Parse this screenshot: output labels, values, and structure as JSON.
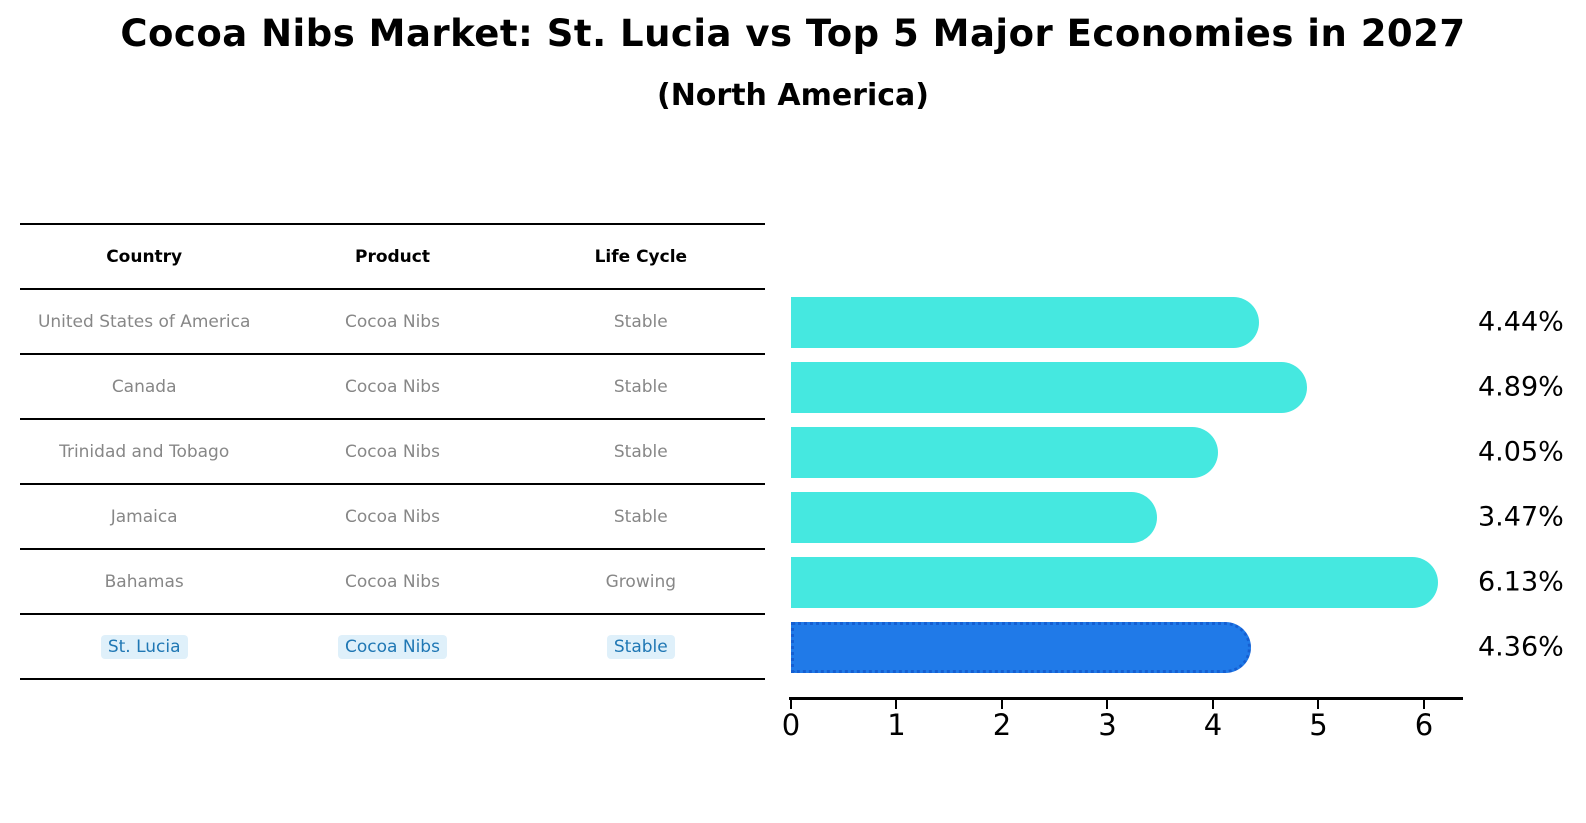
{
  "chart_data": {
    "type": "bar",
    "orientation": "horizontal",
    "title": "Cocoa Nibs Market: St. Lucia vs Top 5 Major Economies in 2027",
    "subtitle": "(North America)",
    "table_headers": {
      "country": "Country",
      "product": "Product",
      "life_cycle": "Life Cycle"
    },
    "rows": [
      {
        "country": "United States of America",
        "product": "Cocoa Nibs",
        "life_cycle": "Stable",
        "value": 4.44,
        "label": "4.44%",
        "highlight": false
      },
      {
        "country": "Canada",
        "product": "Cocoa Nibs",
        "life_cycle": "Stable",
        "value": 4.89,
        "label": "4.89%",
        "highlight": false
      },
      {
        "country": "Trinidad and Tobago",
        "product": "Cocoa Nibs",
        "life_cycle": "Stable",
        "value": 4.05,
        "label": "4.05%",
        "highlight": false
      },
      {
        "country": "Jamaica",
        "product": "Cocoa Nibs",
        "life_cycle": "Stable",
        "value": 3.47,
        "label": "3.47%",
        "highlight": false
      },
      {
        "country": "Bahamas",
        "product": "Cocoa Nibs",
        "life_cycle": "Growing",
        "value": 6.13,
        "label": "6.13%",
        "highlight": false
      },
      {
        "country": "St. Lucia",
        "product": "Cocoa Nibs",
        "life_cycle": "Stable",
        "value": 4.36,
        "label": "4.36%",
        "highlight": true
      }
    ],
    "x_axis": {
      "ticks": [
        0,
        1,
        2,
        3,
        4,
        5,
        6
      ],
      "max": 6.37,
      "grid": false
    },
    "legend": "none",
    "colors": {
      "bar": "#45E8E0",
      "highlight_bar": "#207AE8",
      "highlight_border": "#155FD2",
      "highlight_text": "#1f77b4",
      "row_text": "#878787",
      "text": "#000000"
    }
  }
}
